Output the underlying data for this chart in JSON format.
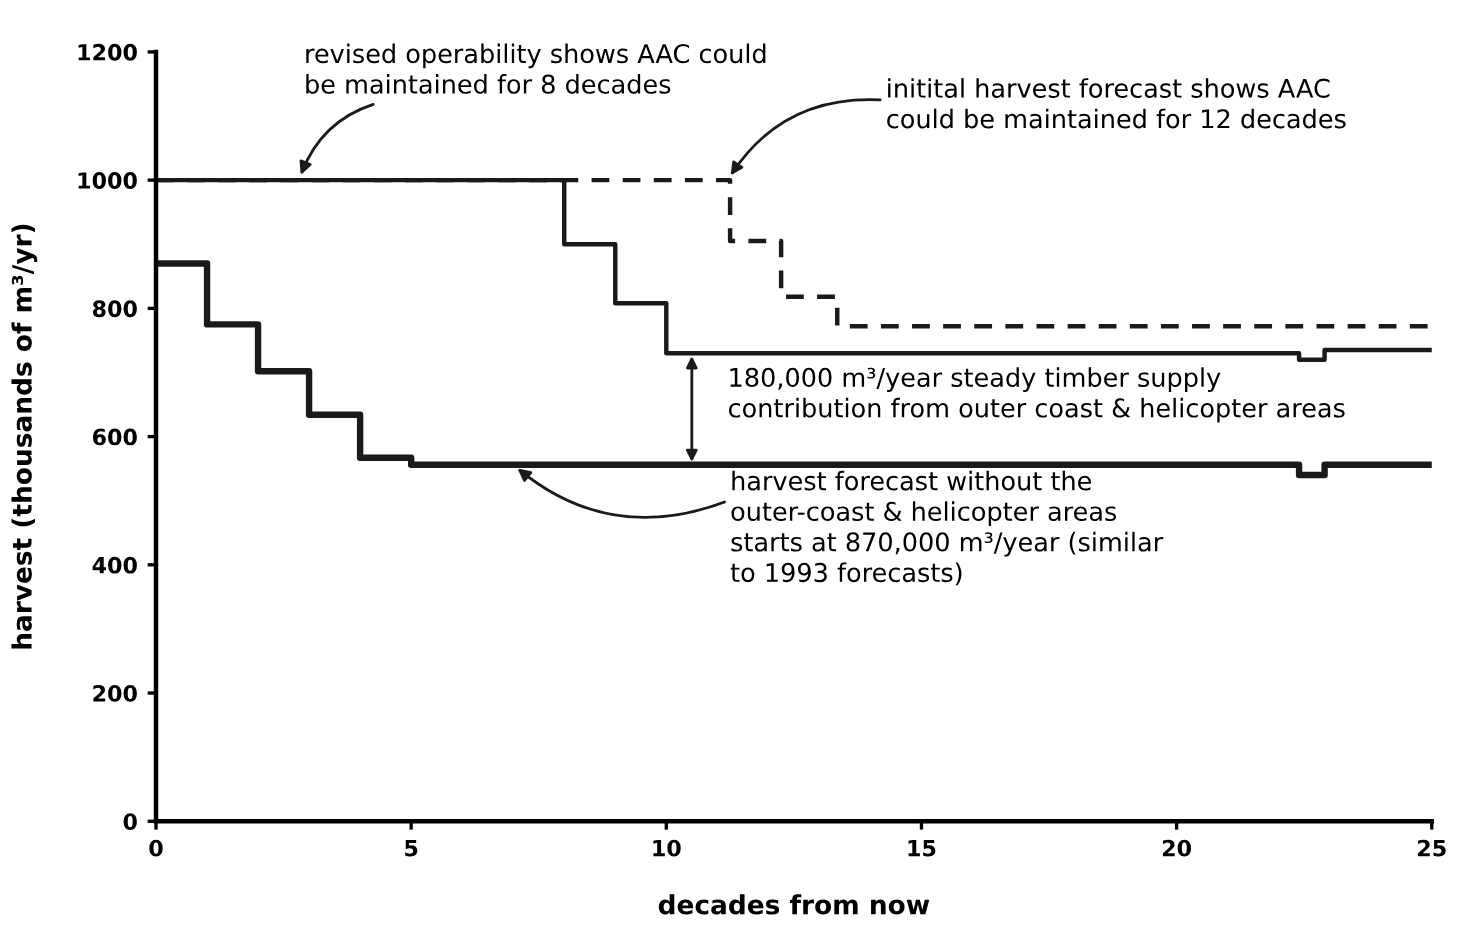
{
  "chart_data": {
    "type": "step",
    "xlabel": "decades from now",
    "ylabel": "harvest (thousands of m³/yr)",
    "xlim": [
      0,
      25
    ],
    "xticks": [
      0,
      5,
      10,
      15,
      20,
      25
    ],
    "ylim": [
      0,
      1200
    ],
    "yticks": [
      0,
      200,
      400,
      600,
      800,
      1000,
      1200
    ],
    "grid": false,
    "legend": false,
    "marker": "none",
    "series": [
      {
        "color": "#1a1a1a",
        "line_style": "dashed",
        "x": [
          0,
          11.25,
          12.25,
          13.35,
          25
        ],
        "values": [
          1000,
          905,
          818,
          772,
          772
        ]
      },
      {
        "color": "#1a1a1a",
        "line_style": "solid",
        "x": [
          0,
          8,
          9,
          10,
          22.4,
          22.9,
          25
        ],
        "values": [
          1000,
          900,
          808,
          730,
          720,
          735,
          735
        ]
      },
      {
        "color": "#1a1a1a",
        "line_style": "solid",
        "x": [
          0,
          1,
          2,
          3,
          4,
          5,
          22.4,
          22.9,
          25
        ],
        "values": [
          870,
          775,
          702,
          634,
          567,
          556,
          540,
          556,
          556
        ]
      }
    ],
    "annotations": [
      {
        "text": "revised operability shows AAC could\nbe maintained for 8 decades",
        "x": 2.8,
        "y": 1000
      },
      {
        "text": "initital harvest forecast shows AAC\ncould be maintained for 12 decades",
        "x": 11.2,
        "y": 1000
      },
      {
        "text": "180,000 m³/year steady timber supply\ncontribution from outer coast & helicopter areas",
        "x": 10.5,
        "y": 730
      },
      {
        "text": "harvest forecast without the\nouter-coast & helicopter areas\nstarts at 870,000 m³/year (similar\nto 1993 forecasts)",
        "x": 7.0,
        "y": 556
      }
    ]
  }
}
